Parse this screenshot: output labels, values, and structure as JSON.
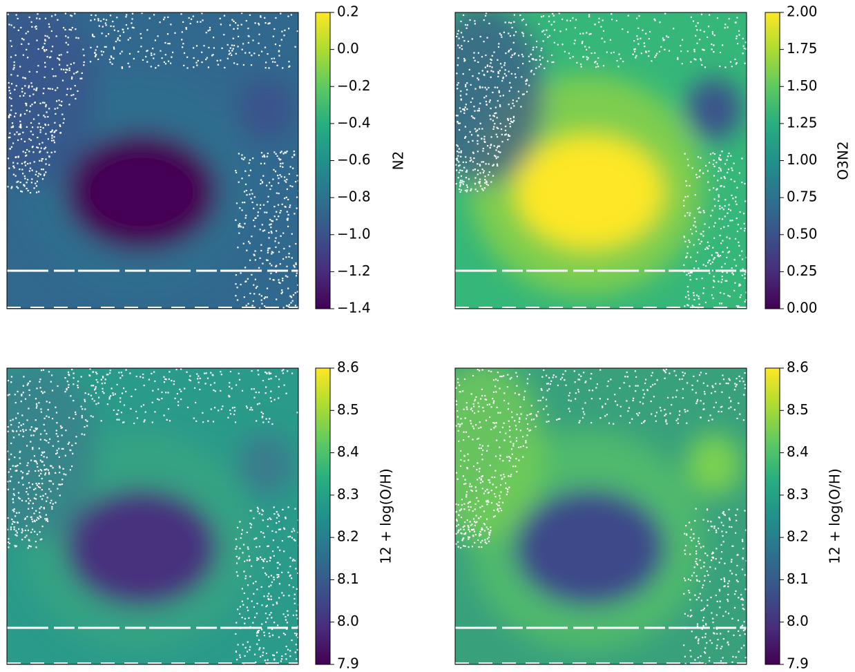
{
  "chart_data": [
    {
      "type": "heatmap",
      "colormap": "viridis",
      "colorbar_label": "N2",
      "clim": [
        -1.4,
        0.2
      ],
      "cticks": [
        0.2,
        {
          "value": 0,
          "label": "0.0"
        },
        {
          "value": -0.2,
          "label": "−0.2"
        },
        {
          "value": -0.4,
          "label": "−0.4"
        },
        {
          "value": -0.6,
          "label": "−0.6"
        },
        {
          "value": -0.8,
          "label": "−0.8"
        },
        {
          "value": -1.0,
          "label": "−1.0"
        },
        {
          "value": -1.2,
          "label": "−1.2"
        },
        {
          "value": -1.4,
          "label": "−1.4"
        }
      ]
    },
    {
      "type": "heatmap",
      "colormap": "viridis",
      "colorbar_label": "O3N2",
      "clim": [
        0,
        2
      ],
      "cticks": [
        {
          "value": 2,
          "label": "2.00"
        },
        {
          "value": 1.75,
          "label": "1.75"
        },
        {
          "value": 1.5,
          "label": "1.50"
        },
        {
          "value": 1.25,
          "label": "1.25"
        },
        {
          "value": 1,
          "label": "1.00"
        },
        {
          "value": 0.75,
          "label": "0.75"
        },
        {
          "value": 0.5,
          "label": "0.50"
        },
        {
          "value": 0.25,
          "label": "0.25"
        },
        {
          "value": 0,
          "label": "0.00"
        }
      ]
    },
    {
      "type": "heatmap",
      "colormap": "viridis",
      "colorbar_label": "12 + log(O/H)",
      "clim": [
        7.9,
        8.6
      ],
      "cticks": [
        8.6,
        8.5,
        8.4,
        8.3,
        8.2,
        8.1,
        {
          "value": 8.0,
          "label": "8.0"
        },
        7.9
      ]
    },
    {
      "type": "heatmap",
      "colormap": "viridis",
      "colorbar_label": "12 + log(O/H)",
      "clim": [
        7.9,
        8.6
      ],
      "cticks": [
        8.6,
        8.5,
        8.4,
        8.3,
        8.2,
        8.1,
        {
          "value": 8.0,
          "label": "8.0"
        },
        7.9
      ]
    }
  ]
}
